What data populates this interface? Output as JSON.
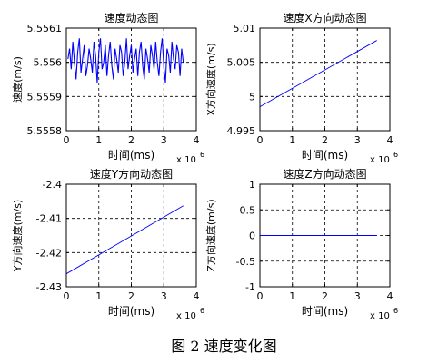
{
  "caption": "图 2  速度变化图",
  "chart_data": [
    {
      "type": "line",
      "title": "速度动态图",
      "xlabel": "时间(ms)",
      "ylabel": "速度(m/s)",
      "xlim": [
        0,
        4
      ],
      "ylim": [
        5.5558,
        5.5561
      ],
      "x_ticks": [
        "0",
        "1",
        "2",
        "3",
        "4"
      ],
      "y_ticks": [
        "5.5558",
        "5.5559",
        "5.556",
        "5.5561"
      ],
      "x_exponent": "x 10",
      "x_exponent_power": "6",
      "grid": true,
      "series": [
        {
          "color": "#0000ff",
          "x": [
            0.05,
            0.1,
            0.15,
            0.2,
            0.25,
            0.3,
            0.35,
            0.4,
            0.45,
            0.5,
            0.55,
            0.6,
            0.65,
            0.7,
            0.75,
            0.8,
            0.85,
            0.9,
            0.95,
            1.0,
            1.05,
            1.1,
            1.15,
            1.2,
            1.25,
            1.3,
            1.35,
            1.4,
            1.45,
            1.5,
            1.55,
            1.6,
            1.65,
            1.7,
            1.75,
            1.8,
            1.85,
            1.9,
            1.95,
            2.0,
            2.05,
            2.1,
            2.15,
            2.2,
            2.25,
            2.3,
            2.35,
            2.4,
            2.45,
            2.5,
            2.55,
            2.6,
            2.65,
            2.7,
            2.75,
            2.8,
            2.85,
            2.9,
            2.95,
            3.0,
            3.05,
            3.1,
            3.15,
            3.2,
            3.25,
            3.3,
            3.35,
            3.4,
            3.45,
            3.5,
            3.55,
            3.6
          ],
          "y": [
            5.55601,
            5.55604,
            5.55598,
            5.55606,
            5.556,
            5.55595,
            5.55603,
            5.55607,
            5.55597,
            5.55601,
            5.55605,
            5.55596,
            5.55599,
            5.55604,
            5.55601,
            5.55597,
            5.55606,
            5.55602,
            5.55594,
            5.55603,
            5.55607,
            5.55598,
            5.556,
            5.55605,
            5.55596,
            5.55602,
            5.55606,
            5.55599,
            5.55595,
            5.55604,
            5.55601,
            5.55597,
            5.55605,
            5.55603,
            5.55596,
            5.556,
            5.55607,
            5.55598,
            5.55602,
            5.55605,
            5.55597,
            5.55601,
            5.55604,
            5.55596,
            5.55603,
            5.55606,
            5.55599,
            5.55595,
            5.55604,
            5.55601,
            5.55597,
            5.55605,
            5.55602,
            5.55598,
            5.55606,
            5.556,
            5.55596,
            5.55603,
            5.55607,
            5.55599,
            5.55594,
            5.55604,
            5.55602,
            5.55597,
            5.55606,
            5.55601,
            5.55598,
            5.55605,
            5.55603,
            5.55596,
            5.55604,
            5.556
          ]
        }
      ]
    },
    {
      "type": "line",
      "title": "速度X方向动态图",
      "xlabel": "时间(ms)",
      "ylabel": "X方向速度(m/s)",
      "xlim": [
        0,
        4
      ],
      "ylim": [
        4.995,
        5.01
      ],
      "x_ticks": [
        "0",
        "1",
        "2",
        "3",
        "4"
      ],
      "y_ticks": [
        "4.995",
        "5",
        "5.005",
        "5.01"
      ],
      "x_exponent": "x 10",
      "x_exponent_power": "6",
      "grid": true,
      "series": [
        {
          "color": "#0000ff",
          "x": [
            0,
            3.6
          ],
          "y": [
            4.9985,
            5.0082
          ]
        }
      ]
    },
    {
      "type": "line",
      "title": "速度Y方向动态图",
      "xlabel": "时间(ms)",
      "ylabel": "Y方向速度(m/s)",
      "xlim": [
        0,
        4
      ],
      "ylim": [
        -2.43,
        -2.4
      ],
      "x_ticks": [
        "0",
        "1",
        "2",
        "3",
        "4"
      ],
      "y_ticks": [
        "-2.43",
        "-2.42",
        "-2.41",
        "-2.4"
      ],
      "x_exponent": "x 10",
      "x_exponent_power": "6",
      "grid": true,
      "series": [
        {
          "color": "#0000ff",
          "x": [
            0,
            3.6
          ],
          "y": [
            -2.4262,
            -2.4063
          ]
        }
      ]
    },
    {
      "type": "line",
      "title": "速度Z方向动态图",
      "xlabel": "时间(ms)",
      "ylabel": "Z方向速度(m/s)",
      "xlim": [
        0,
        4
      ],
      "ylim": [
        -1,
        1
      ],
      "x_ticks": [
        "0",
        "1",
        "2",
        "3",
        "4"
      ],
      "y_ticks": [
        "-1",
        "-0.5",
        "0",
        "0.5",
        "1"
      ],
      "x_exponent": "x 10",
      "x_exponent_power": "6",
      "grid": true,
      "series": [
        {
          "color": "#0000ff",
          "x": [
            0,
            3.6
          ],
          "y": [
            0,
            0
          ]
        }
      ]
    }
  ]
}
